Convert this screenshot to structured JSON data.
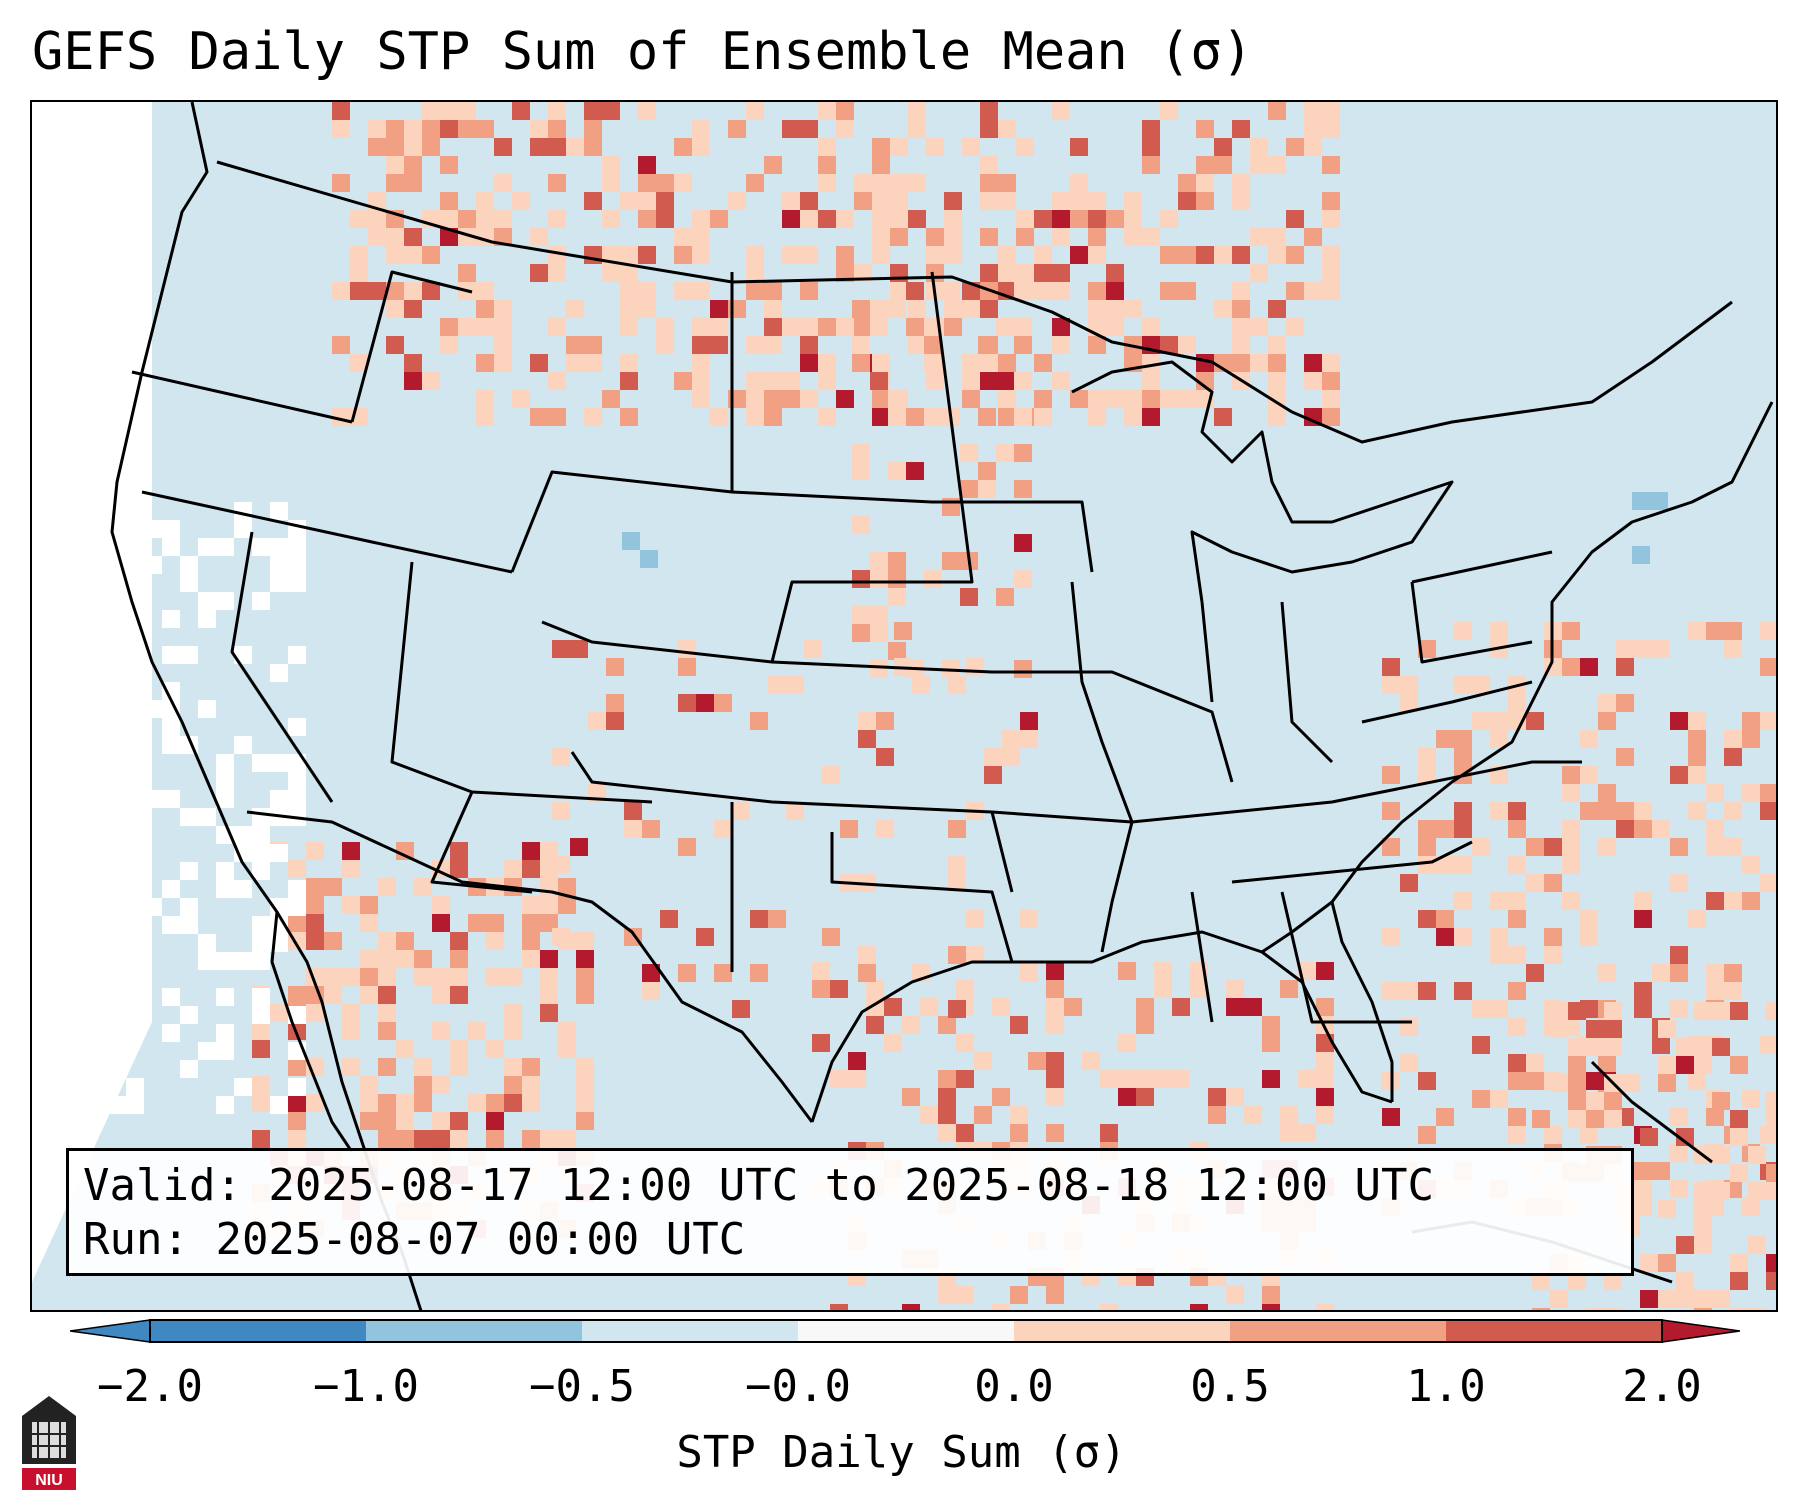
{
  "title": "GEFS Daily STP Sum of Ensemble Mean (σ)",
  "info": {
    "valid": "Valid: 2025-08-17 12:00 UTC to 2025-08-18 12:00 UTC",
    "run": "Run:   2025-08-07 00:00 UTC"
  },
  "colorbar": {
    "label": "STP Daily Sum (σ)",
    "ticks": [
      "−2.0",
      "−1.0",
      "−0.5",
      "−0.0",
      "0.0",
      "0.5",
      "1.0",
      "2.0"
    ],
    "bins": [
      {
        "range": "-2.0 to -1.0",
        "color": "#3f88c1"
      },
      {
        "range": "-1.0 to -0.5",
        "color": "#93c4de"
      },
      {
        "range": "-0.5 to -0.0",
        "color": "#d2e6f0"
      },
      {
        "range": "-0.0 to 0.0",
        "color": "#f8f8f8"
      },
      {
        "range": "0.0 to 0.5",
        "color": "#fcd3bd"
      },
      {
        "range": "0.5 to 1.0",
        "color": "#f1a083"
      },
      {
        "range": "1.0 to 2.0",
        "color": "#d25b4f"
      },
      {
        "range": "> 2.0",
        "color": "#b31a2d"
      },
      {
        "range": "< -2.0",
        "color": "#3f88c1"
      }
    ]
  },
  "colors": {
    "background_anomaly": "#d2e6f0",
    "weak_positive": "#fcd3bd",
    "moderate_positive": "#f1a083",
    "strong_positive": "#d25b4f",
    "extreme_positive": "#b31a2d",
    "near_zero": "#ffffff",
    "negative": "#93c4de"
  },
  "logo": {
    "text": "NIU",
    "icon": "niu-logo-icon"
  }
}
